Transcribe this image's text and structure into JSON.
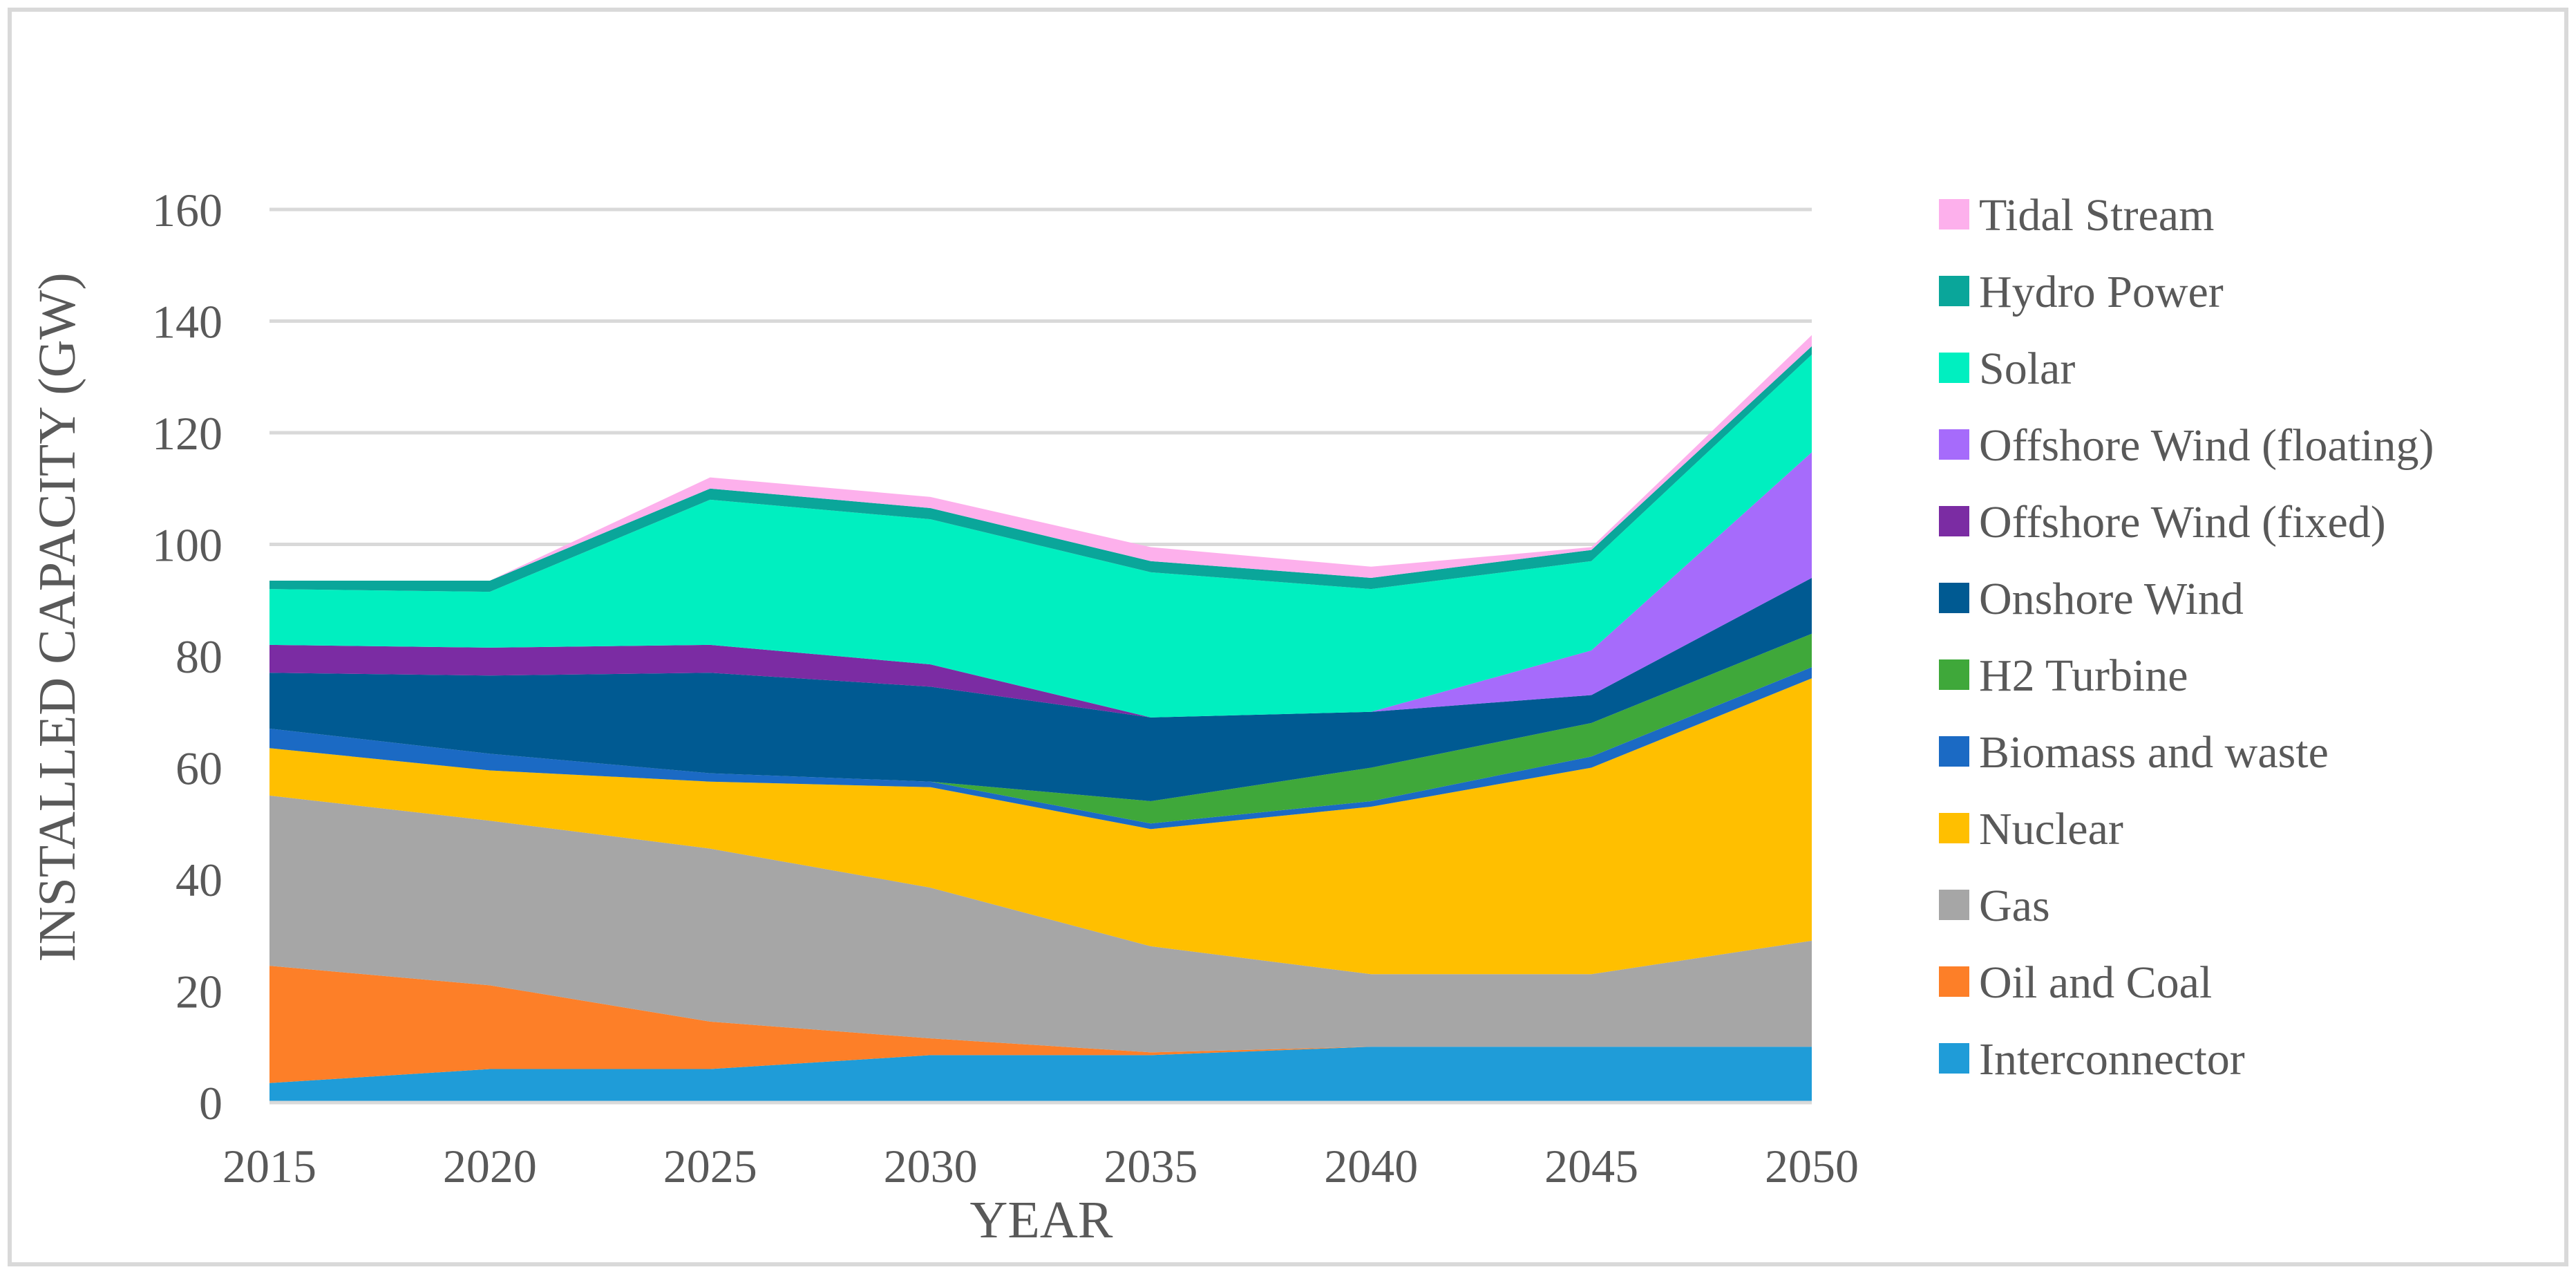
{
  "chart_data": {
    "type": "area",
    "stacked": true,
    "title": "",
    "xlabel": "YEAR",
    "ylabel": "INSTALLED CAPACITY (GW)",
    "x": [
      2015,
      2020,
      2025,
      2030,
      2035,
      2040,
      2045,
      2050
    ],
    "ylim": [
      0,
      160
    ],
    "yticks": [
      0,
      20,
      40,
      60,
      80,
      100,
      120,
      140,
      160
    ],
    "grid": true,
    "legend_position": "right",
    "series": [
      {
        "name": "Interconnector",
        "color": "#1f9cd8",
        "values": [
          3.5,
          6,
          6,
          8.5,
          8.5,
          10,
          10,
          10
        ]
      },
      {
        "name": "Oil and Coal",
        "color": "#fd7f28",
        "values": [
          21,
          15,
          8.5,
          3,
          0.5,
          0,
          0,
          0
        ]
      },
      {
        "name": "Gas",
        "color": "#a6a6a6",
        "values": [
          30.5,
          29.5,
          31,
          27,
          19,
          13,
          13,
          19
        ]
      },
      {
        "name": "Nuclear",
        "color": "#ffbf00",
        "values": [
          8.5,
          9,
          12,
          18,
          21,
          30,
          37,
          47
        ]
      },
      {
        "name": "Biomass and waste",
        "color": "#1b6ac4",
        "values": [
          3.5,
          3,
          1.5,
          1,
          1,
          1,
          2,
          2
        ]
      },
      {
        "name": "H2 Turbine",
        "color": "#3fa83a",
        "values": [
          0,
          0,
          0,
          0,
          4,
          6,
          6,
          6
        ]
      },
      {
        "name": "Onshore Wind",
        "color": "#005a92",
        "values": [
          10,
          14,
          18,
          17,
          15,
          10,
          5,
          10
        ]
      },
      {
        "name": "Offshore Wind (fixed)",
        "color": "#7b2ca3",
        "values": [
          5,
          5,
          5,
          4,
          0,
          0,
          0,
          0
        ]
      },
      {
        "name": "Offshore Wind (floating)",
        "color": "#a66bfb",
        "values": [
          0,
          0,
          0,
          0,
          0,
          0,
          8,
          22.5
        ]
      },
      {
        "name": "Solar",
        "color": "#00efc0",
        "values": [
          10,
          10,
          26,
          26,
          26,
          22,
          16,
          17.5
        ]
      },
      {
        "name": "Hydro Power",
        "color": "#0aa69a",
        "values": [
          1.5,
          2,
          2,
          2,
          2,
          2,
          2,
          1.5
        ]
      },
      {
        "name": "Tidal Stream",
        "color": "#fdb0ec",
        "values": [
          0,
          0,
          2,
          2,
          2.5,
          2,
          0.5,
          2
        ]
      }
    ]
  }
}
